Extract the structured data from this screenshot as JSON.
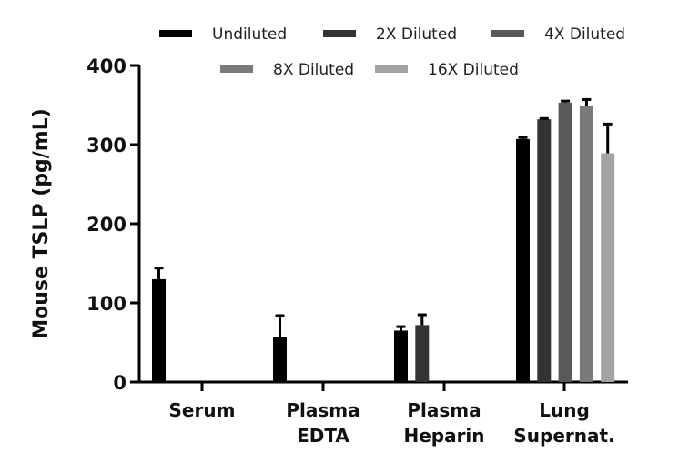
{
  "chart_data": {
    "type": "bar",
    "title": "",
    "xlabel": "",
    "ylabel": "Mouse TSLP (pg/mL)",
    "ylim": [
      0,
      400
    ],
    "yticks": [
      0,
      100,
      200,
      300,
      400
    ],
    "grid": false,
    "legend_position": "top",
    "categories": [
      [
        "Serum"
      ],
      [
        "Plasma",
        "EDTA"
      ],
      [
        "Plasma",
        "Heparin"
      ],
      [
        "Lung",
        "Supernat."
      ]
    ],
    "category_names": [
      "Serum",
      "Plasma EDTA",
      "Plasma Heparin",
      "Lung Supernat."
    ],
    "series": [
      {
        "name": "Undiluted",
        "color": "#000000",
        "values": [
          130,
          57,
          65,
          307
        ],
        "errors": [
          14,
          27,
          5,
          2
        ]
      },
      {
        "name": "2X Diluted",
        "color": "#333333",
        "values": [
          null,
          null,
          72,
          332
        ],
        "errors": [
          null,
          null,
          13,
          1
        ]
      },
      {
        "name": "4X Diluted",
        "color": "#595959",
        "values": [
          null,
          null,
          null,
          353
        ],
        "errors": [
          null,
          null,
          null,
          2
        ]
      },
      {
        "name": "8X Diluted",
        "color": "#7a7a7a",
        "values": [
          null,
          null,
          null,
          349
        ],
        "errors": [
          null,
          null,
          null,
          8
        ]
      },
      {
        "name": "16X Diluted",
        "color": "#a3a3a3",
        "values": [
          null,
          null,
          null,
          289
        ],
        "errors": [
          null,
          null,
          null,
          37
        ]
      }
    ]
  }
}
